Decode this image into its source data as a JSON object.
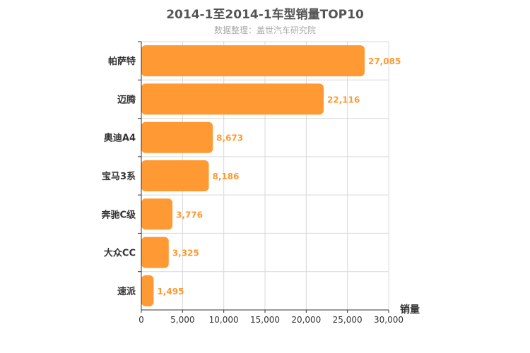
{
  "chart_data": {
    "type": "bar",
    "orientation": "horizontal",
    "title": "2014-1至2014-1车型销量TOP10",
    "subtitle": "数据整理：盖世汽车研究院",
    "xlabel": "销量",
    "categories": [
      "帕萨特",
      "迈腾",
      "奥迪A4",
      "宝马3系",
      "奔驰C级",
      "大众CC",
      "速派"
    ],
    "values": [
      27085,
      22116,
      8673,
      8186,
      3776,
      3325,
      1495
    ],
    "value_labels": [
      "27,085",
      "22,116",
      "8,673",
      "8,186",
      "3,776",
      "3,325",
      "1,495"
    ],
    "xlim": [
      0,
      30000
    ],
    "ticks": [
      0,
      5000,
      10000,
      15000,
      20000,
      25000,
      30000
    ],
    "tick_labels": [
      "0",
      "5,000",
      "10,000",
      "15,000",
      "20,000",
      "25,000",
      "30,000"
    ],
    "grid": true,
    "bar_color": "#ff9933"
  }
}
